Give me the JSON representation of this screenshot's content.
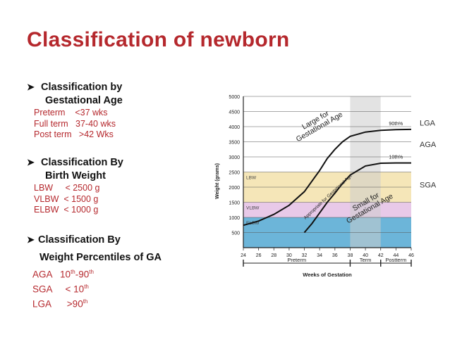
{
  "title": "Classification of newborn",
  "gestational_age": {
    "heading_1": "Classification by",
    "heading_2": "Gestational Age",
    "items": [
      "Preterm    <37 wks",
      "Full term   37-40 wks",
      "Post term   >42 Wks"
    ]
  },
  "birth_weight": {
    "heading_1": "Classification By",
    "heading_2": "Birth Weight",
    "items": [
      "LBW     < 2500 g",
      "VLBW  < 1500 g",
      "ELBW  < 1000 g"
    ]
  },
  "percentiles": {
    "heading_1": "Classification By",
    "heading_2": "Weight Percentiles of GA",
    "aga": {
      "label": "AGA",
      "v1": "10",
      "s1": "th",
      "dash": "-",
      "v2": "90",
      "s2": "th"
    },
    "sga": {
      "label": "SGA",
      "lt": "< 10",
      "s": "th"
    },
    "lga": {
      "label": "LGA",
      "gt": ">90",
      "s": "th"
    }
  },
  "chart_data": {
    "type": "line",
    "ylabel": "Weight (grams)",
    "xlabel": "Weeks of Gestation",
    "x_ticks": [
      24,
      26,
      28,
      30,
      32,
      34,
      36,
      38,
      40,
      42,
      44,
      46
    ],
    "y_ticks": [
      500,
      1000,
      1500,
      2000,
      2500,
      3000,
      3500,
      4000,
      4500,
      5000
    ],
    "xlim": [
      24,
      46
    ],
    "ylim": [
      0,
      5000
    ],
    "term_band": [
      38,
      42
    ],
    "bands": [
      {
        "label": "LBW",
        "from": 1500,
        "to": 2500,
        "color": "#f5e6b8"
      },
      {
        "label": "VLBW",
        "from": 1000,
        "to": 1500,
        "color": "#e8c9e8"
      },
      {
        "label": "ELBW",
        "from": 0,
        "to": 1000,
        "color": "#6cb5d9"
      }
    ],
    "period_labels": [
      "Preterm",
      "Term",
      "Postterm"
    ],
    "series": [
      {
        "name": "90th%",
        "x": [
          24,
          26,
          28,
          30,
          32,
          34,
          35,
          36,
          37,
          38,
          40,
          42,
          44,
          46
        ],
        "values": [
          740,
          880,
          1100,
          1400,
          1850,
          2550,
          2950,
          3250,
          3500,
          3680,
          3820,
          3880,
          3900,
          3910
        ]
      },
      {
        "name": "10th%",
        "x": [
          32,
          33,
          34,
          35,
          36,
          37,
          38,
          40,
          42,
          44,
          46
        ],
        "values": [
          500,
          800,
          1150,
          1500,
          1800,
          2120,
          2400,
          2700,
          2790,
          2800,
          2800
        ]
      }
    ],
    "right_labels": [
      "LGA",
      "AGA",
      "SGA"
    ],
    "curve_labels": [
      "Large for Gestational Age",
      "Appropriate for Gestational Age",
      "Small for Gestational Age"
    ]
  }
}
